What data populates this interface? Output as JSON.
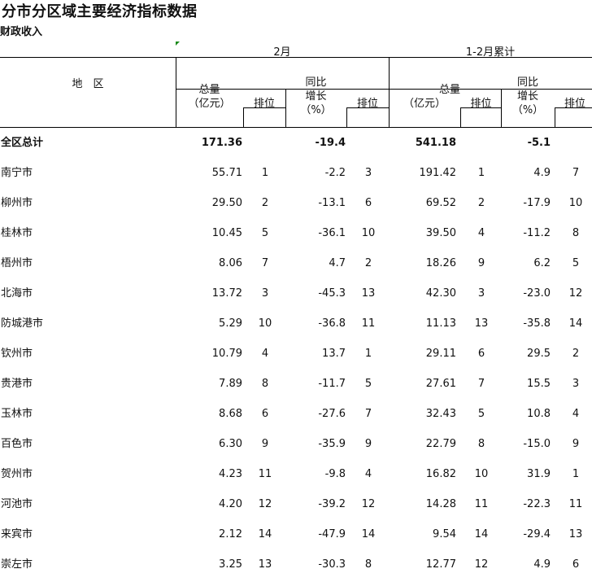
{
  "title": "分市分区域主要经济指标数据",
  "subtitle": "财政收入",
  "header": {
    "region": "地　区",
    "group_month": "2月",
    "group_cumulative": "1-2月累计",
    "total_line1": "总量",
    "total_line2": "（亿元）",
    "rank": "排位",
    "yoy_line1": "同比",
    "yoy_line2": "增长",
    "yoy_line3": "（%）"
  },
  "total_row": {
    "region": "全区总计",
    "m_total": "171.36",
    "m_rank": "",
    "m_yoy": "-19.4",
    "m_yoy_rank": "",
    "c_total": "541.18",
    "c_rank": "",
    "c_yoy": "-5.1",
    "c_yoy_rank": ""
  },
  "rows": [
    {
      "region": "南宁市",
      "m_total": "55.71",
      "m_rank": "1",
      "m_yoy": "-2.2",
      "m_yoy_rank": "3",
      "c_total": "191.42",
      "c_rank": "1",
      "c_yoy": "4.9",
      "c_yoy_rank": "7"
    },
    {
      "region": "柳州市",
      "m_total": "29.50",
      "m_rank": "2",
      "m_yoy": "-13.1",
      "m_yoy_rank": "6",
      "c_total": "69.52",
      "c_rank": "2",
      "c_yoy": "-17.9",
      "c_yoy_rank": "10"
    },
    {
      "region": "桂林市",
      "m_total": "10.45",
      "m_rank": "5",
      "m_yoy": "-36.1",
      "m_yoy_rank": "10",
      "c_total": "39.50",
      "c_rank": "4",
      "c_yoy": "-11.2",
      "c_yoy_rank": "8"
    },
    {
      "region": "梧州市",
      "m_total": "8.06",
      "m_rank": "7",
      "m_yoy": "4.7",
      "m_yoy_rank": "2",
      "c_total": "18.26",
      "c_rank": "9",
      "c_yoy": "6.2",
      "c_yoy_rank": "5"
    },
    {
      "region": "北海市",
      "m_total": "13.72",
      "m_rank": "3",
      "m_yoy": "-45.3",
      "m_yoy_rank": "13",
      "c_total": "42.30",
      "c_rank": "3",
      "c_yoy": "-23.0",
      "c_yoy_rank": "12"
    },
    {
      "region": "防城港市",
      "m_total": "5.29",
      "m_rank": "10",
      "m_yoy": "-36.8",
      "m_yoy_rank": "11",
      "c_total": "11.13",
      "c_rank": "13",
      "c_yoy": "-35.8",
      "c_yoy_rank": "14"
    },
    {
      "region": "钦州市",
      "m_total": "10.79",
      "m_rank": "4",
      "m_yoy": "13.7",
      "m_yoy_rank": "1",
      "c_total": "29.11",
      "c_rank": "6",
      "c_yoy": "29.5",
      "c_yoy_rank": "2"
    },
    {
      "region": "贵港市",
      "m_total": "7.89",
      "m_rank": "8",
      "m_yoy": "-11.7",
      "m_yoy_rank": "5",
      "c_total": "27.61",
      "c_rank": "7",
      "c_yoy": "15.5",
      "c_yoy_rank": "3"
    },
    {
      "region": "玉林市",
      "m_total": "8.68",
      "m_rank": "6",
      "m_yoy": "-27.6",
      "m_yoy_rank": "7",
      "c_total": "32.43",
      "c_rank": "5",
      "c_yoy": "10.8",
      "c_yoy_rank": "4"
    },
    {
      "region": "百色市",
      "m_total": "6.30",
      "m_rank": "9",
      "m_yoy": "-35.9",
      "m_yoy_rank": "9",
      "c_total": "22.79",
      "c_rank": "8",
      "c_yoy": "-15.0",
      "c_yoy_rank": "9"
    },
    {
      "region": "贺州市",
      "m_total": "4.23",
      "m_rank": "11",
      "m_yoy": "-9.8",
      "m_yoy_rank": "4",
      "c_total": "16.82",
      "c_rank": "10",
      "c_yoy": "31.9",
      "c_yoy_rank": "1"
    },
    {
      "region": "河池市",
      "m_total": "4.20",
      "m_rank": "12",
      "m_yoy": "-39.2",
      "m_yoy_rank": "12",
      "c_total": "14.28",
      "c_rank": "11",
      "c_yoy": "-22.3",
      "c_yoy_rank": "11"
    },
    {
      "region": "来宾市",
      "m_total": "2.12",
      "m_rank": "14",
      "m_yoy": "-47.9",
      "m_yoy_rank": "14",
      "c_total": "9.54",
      "c_rank": "14",
      "c_yoy": "-29.4",
      "c_yoy_rank": "13"
    },
    {
      "region": "崇左市",
      "m_total": "3.25",
      "m_rank": "13",
      "m_yoy": "-30.3",
      "m_yoy_rank": "8",
      "c_total": "12.77",
      "c_rank": "12",
      "c_yoy": "4.9",
      "c_yoy_rank": "6"
    }
  ]
}
